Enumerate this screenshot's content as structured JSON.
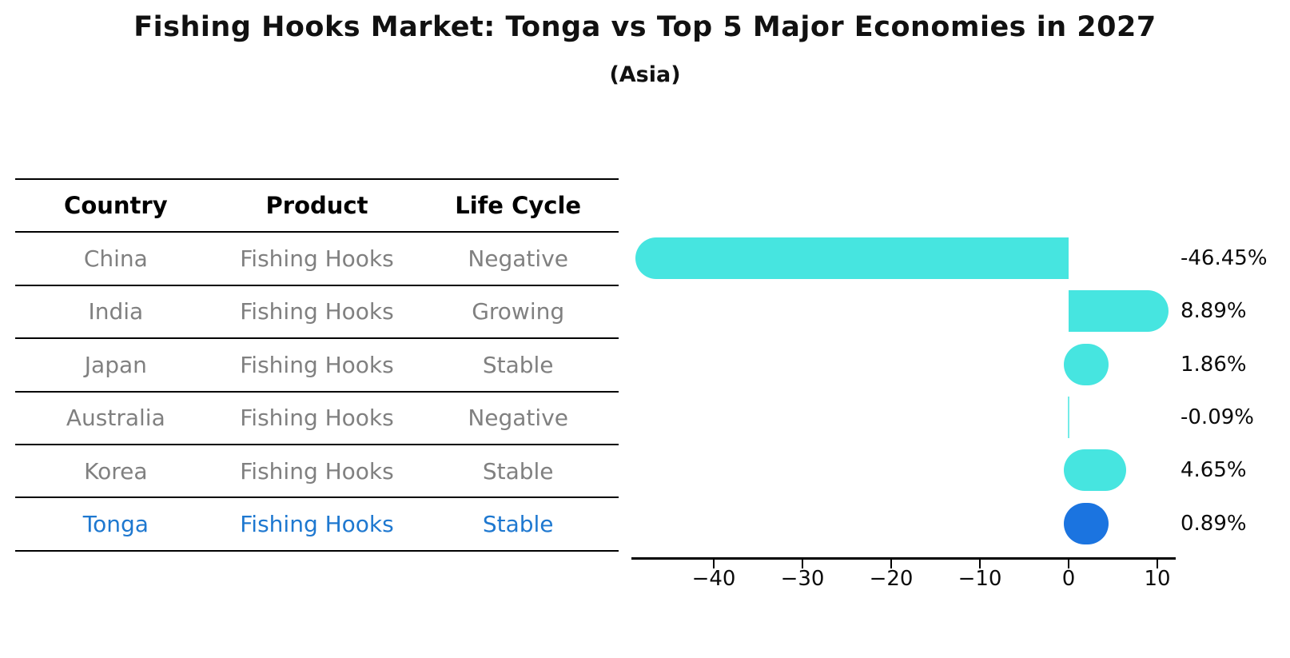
{
  "title": "Fishing Hooks Market: Tonga vs Top 5 Major Economies in 2027",
  "subtitle": "(Asia)",
  "table": {
    "headers": [
      "Country",
      "Product",
      "Life Cycle"
    ],
    "rows": [
      {
        "country": "China",
        "product": "Fishing Hooks",
        "life_cycle": "Negative",
        "highlight": false
      },
      {
        "country": "India",
        "product": "Fishing Hooks",
        "life_cycle": "Growing",
        "highlight": false
      },
      {
        "country": "Japan",
        "product": "Fishing Hooks",
        "life_cycle": "Stable",
        "highlight": false
      },
      {
        "country": "Australia",
        "product": "Fishing Hooks",
        "life_cycle": "Negative",
        "highlight": false
      },
      {
        "country": "Korea",
        "product": "Fishing Hooks",
        "life_cycle": "Stable",
        "highlight": false
      },
      {
        "country": "Tonga",
        "product": "Fishing Hooks",
        "life_cycle": "Stable",
        "highlight": true
      }
    ]
  },
  "chart_data": {
    "type": "bar",
    "orientation": "horizontal",
    "title": "Fishing Hooks Market: Tonga vs Top 5 Major Economies in 2027",
    "subtitle": "(Asia)",
    "categories": [
      "China",
      "India",
      "Japan",
      "Australia",
      "Korea",
      "Tonga"
    ],
    "values": [
      -46.45,
      8.89,
      1.86,
      -0.09,
      4.65,
      0.89
    ],
    "value_labels": [
      "-46.45%",
      "8.89%",
      "1.86%",
      "-0.09%",
      "4.65%",
      "0.89%"
    ],
    "xlabel": "",
    "ylabel": "",
    "xlim": [
      -49.5,
      12
    ],
    "x_ticks": [
      -40,
      -30,
      -20,
      -10,
      0,
      10
    ],
    "x_tick_labels": [
      "−40",
      "−30",
      "−20",
      "−10",
      "0",
      "10"
    ],
    "grid": false,
    "legend": false,
    "bar_color": "#46E5E0",
    "highlight_color": "#1B74E0",
    "highlight_index": 5
  },
  "colors": {
    "accent_cyan": "#46E5E0",
    "accent_blue": "#1B74E0",
    "highlight_text": "#1E78D0",
    "table_text": "#808080",
    "heading_text": "#111111"
  }
}
